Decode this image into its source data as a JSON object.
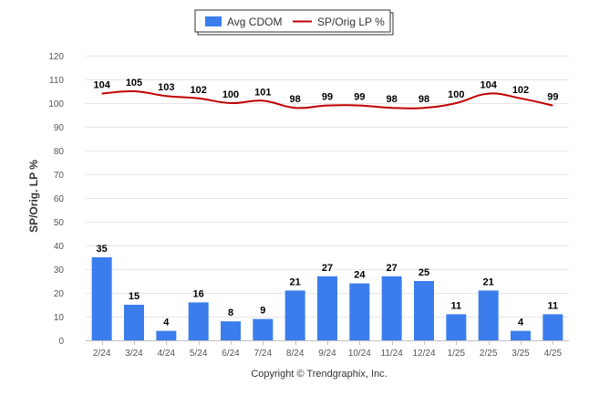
{
  "chart_data": {
    "type": "bar",
    "categories": [
      "2/24",
      "3/24",
      "4/24",
      "5/24",
      "6/24",
      "7/24",
      "8/24",
      "9/24",
      "10/24",
      "11/24",
      "12/24",
      "1/25",
      "2/25",
      "3/25",
      "4/25"
    ],
    "series": [
      {
        "name": "Avg CDOM",
        "type": "bar",
        "color": "#3b7ded",
        "values": [
          35,
          15,
          4,
          16,
          8,
          9,
          21,
          27,
          24,
          27,
          25,
          11,
          21,
          4,
          11
        ]
      },
      {
        "name": "SP/Orig LP %",
        "type": "line",
        "color": "#c00000",
        "values": [
          104,
          105,
          103,
          102,
          100,
          101,
          98,
          99,
          99,
          98,
          98,
          100,
          104,
          102,
          99
        ]
      }
    ],
    "ylabel": "SP/Orig. LP %",
    "ylim": [
      0,
      120
    ],
    "yticks": [
      0,
      10,
      20,
      30,
      40,
      50,
      60,
      70,
      80,
      90,
      100,
      110,
      120
    ],
    "grid": true,
    "legend_position": "top-center"
  },
  "credit": "Copyright © Trendgraphix, Inc."
}
